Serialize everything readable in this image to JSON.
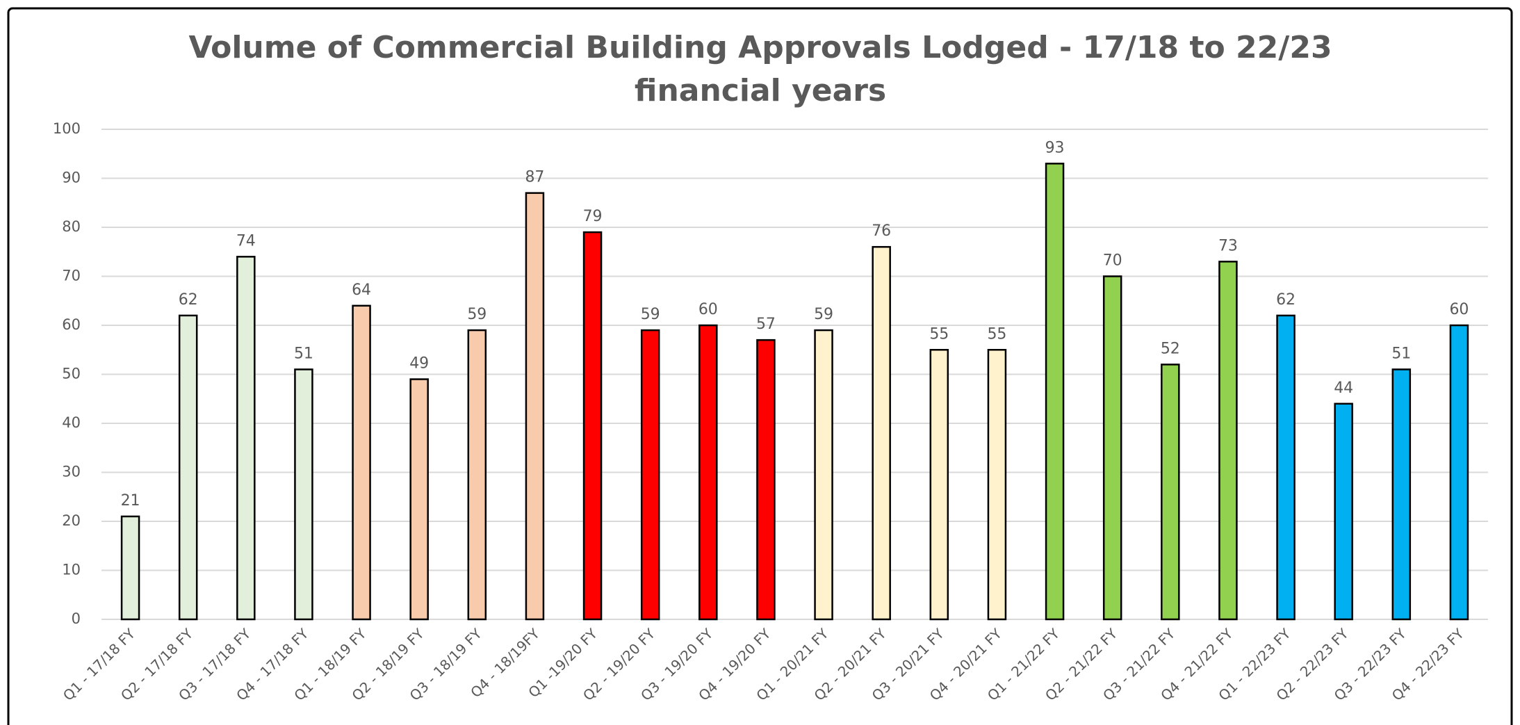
{
  "chart_data": {
    "type": "bar",
    "title": "Volume of Commercial Building Approvals Lodged - 17/18 to 22/23 financial years",
    "categories": [
      "Q1 - 17/18 FY",
      "Q2 - 17/18 FY",
      "Q3 - 17/18 FY",
      "Q4 - 17/18 FY",
      "Q1 - 18/19 FY",
      "Q2 - 18/19 FY",
      "Q3 - 18/19 FY",
      "Q4 - 18/19FY",
      "Q1 -19/20 FY",
      "Q2 - 19/20 FY",
      "Q3 - 19/20 FY",
      "Q4 - 19/20 FY",
      "Q1 - 20/21 FY",
      "Q2 - 20/21 FY",
      "Q3 - 20/21 FY",
      "Q4 - 20/21 FY",
      "Q1 - 21/22 FY",
      "Q2 - 21/22 FY",
      "Q3 - 21/22 FY",
      "Q4 - 21/22 FY",
      "Q1 - 22/23 FY",
      "Q2 - 22/23 FY",
      "Q3 - 22/23 FY",
      "Q4 - 22/23 FY"
    ],
    "values": [
      21,
      62,
      74,
      51,
      64,
      49,
      59,
      87,
      79,
      59,
      60,
      57,
      59,
      76,
      55,
      55,
      93,
      70,
      52,
      73,
      62,
      44,
      51,
      60
    ],
    "colors": [
      "#e2efda",
      "#e2efda",
      "#e2efda",
      "#e2efda",
      "#f8cbad",
      "#f8cbad",
      "#f8cbad",
      "#f8cbad",
      "#ff0000",
      "#ff0000",
      "#ff0000",
      "#ff0000",
      "#fff2cc",
      "#fff2cc",
      "#fff2cc",
      "#fff2cc",
      "#92d050",
      "#92d050",
      "#92d050",
      "#92d050",
      "#00b0f0",
      "#00b0f0",
      "#00b0f0",
      "#00b0f0"
    ],
    "ylim": [
      0,
      100
    ],
    "yticks": [
      0,
      10,
      20,
      30,
      40,
      50,
      60,
      70,
      80,
      90,
      100
    ],
    "grid": true
  }
}
